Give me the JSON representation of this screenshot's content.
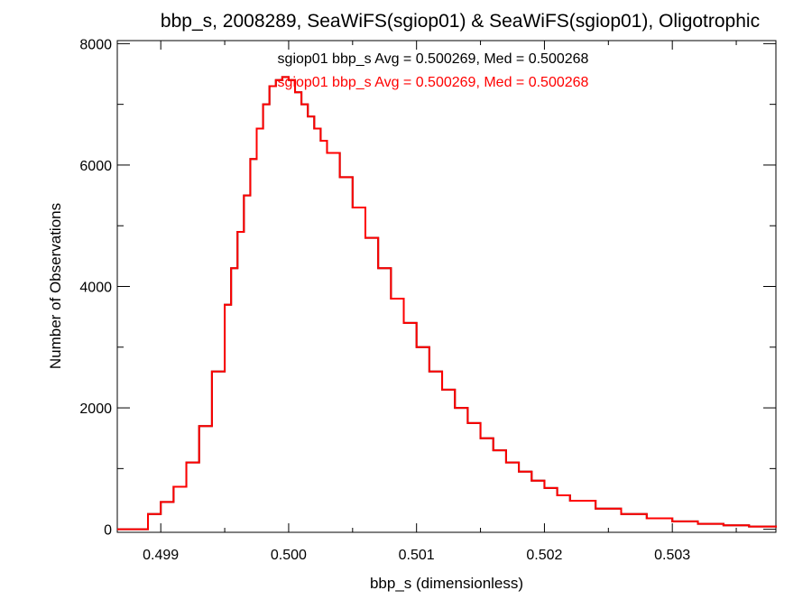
{
  "chart_data": {
    "type": "histogram",
    "title": "bbp_s, 2008289, SeaWiFS(sgiop01) & SeaWiFS(sgiop01), Oligotrophic",
    "xlabel": "bbp_s (dimensionless)",
    "ylabel": "Number of Observations",
    "xlim": [
      0.49866,
      0.50381
    ],
    "ylim": [
      -50,
      8050
    ],
    "x_ticks": [
      {
        "value": 0.499,
        "label": "0.499"
      },
      {
        "value": 0.5,
        "label": "0.500"
      },
      {
        "value": 0.501,
        "label": "0.501"
      },
      {
        "value": 0.502,
        "label": "0.502"
      },
      {
        "value": 0.503,
        "label": "0.503"
      }
    ],
    "y_ticks": [
      {
        "value": 0,
        "label": "0"
      },
      {
        "value": 2000,
        "label": "2000"
      },
      {
        "value": 4000,
        "label": "4000"
      },
      {
        "value": 6000,
        "label": "6000"
      },
      {
        "value": 8000,
        "label": "8000"
      }
    ],
    "grid": false,
    "annotations": [
      {
        "text": "sgiop01 bbp_s Avg = 0.500269, Med = 0.500268",
        "color": "#000000"
      },
      {
        "text": "sgiop01 bbp_s Avg = 0.500269, Med = 0.500268",
        "color": "#ff0000"
      }
    ],
    "series": [
      {
        "color": "#000000",
        "x": [
          0.49866,
          0.49885,
          0.4989,
          0.499,
          0.4991,
          0.4992,
          0.4993,
          0.4994,
          0.4995,
          0.49955,
          0.4996,
          0.49965,
          0.4997,
          0.49975,
          0.4998,
          0.49985,
          0.4999,
          0.49995,
          0.5,
          0.50005,
          0.5001,
          0.50015,
          0.5002,
          0.50025,
          0.5003,
          0.5004,
          0.5005,
          0.5006,
          0.5007,
          0.5008,
          0.5009,
          0.501,
          0.5011,
          0.5012,
          0.5013,
          0.5014,
          0.5015,
          0.5016,
          0.5017,
          0.5018,
          0.5019,
          0.502,
          0.5021,
          0.5022,
          0.5024,
          0.5026,
          0.5028,
          0.503,
          0.5032,
          0.5034,
          0.5036,
          0.50381
        ],
        "y": [
          0,
          0,
          250,
          450,
          700,
          1100,
          1700,
          2600,
          3700,
          4300,
          4900,
          5500,
          6100,
          6600,
          7000,
          7300,
          7400,
          7450,
          7400,
          7200,
          7000,
          6800,
          6600,
          6400,
          6200,
          5800,
          5300,
          4800,
          4300,
          3800,
          3400,
          3000,
          2600,
          2300,
          2000,
          1750,
          1500,
          1300,
          1100,
          950,
          800,
          680,
          560,
          470,
          340,
          250,
          180,
          130,
          90,
          65,
          45,
          30
        ]
      },
      {
        "color": "#ff0000",
        "x": [
          0.49866,
          0.49885,
          0.4989,
          0.499,
          0.4991,
          0.4992,
          0.4993,
          0.4994,
          0.4995,
          0.49955,
          0.4996,
          0.49965,
          0.4997,
          0.49975,
          0.4998,
          0.49985,
          0.4999,
          0.49995,
          0.5,
          0.50005,
          0.5001,
          0.50015,
          0.5002,
          0.50025,
          0.5003,
          0.5004,
          0.5005,
          0.5006,
          0.5007,
          0.5008,
          0.5009,
          0.501,
          0.5011,
          0.5012,
          0.5013,
          0.5014,
          0.5015,
          0.5016,
          0.5017,
          0.5018,
          0.5019,
          0.502,
          0.5021,
          0.5022,
          0.5024,
          0.5026,
          0.5028,
          0.503,
          0.5032,
          0.5034,
          0.5036,
          0.50381
        ],
        "y": [
          0,
          0,
          250,
          450,
          700,
          1100,
          1700,
          2600,
          3700,
          4300,
          4900,
          5500,
          6100,
          6600,
          7000,
          7300,
          7400,
          7450,
          7400,
          7200,
          7000,
          6800,
          6600,
          6400,
          6200,
          5800,
          5300,
          4800,
          4300,
          3800,
          3400,
          3000,
          2600,
          2300,
          2000,
          1750,
          1500,
          1300,
          1100,
          950,
          800,
          680,
          560,
          470,
          340,
          250,
          180,
          130,
          90,
          65,
          45,
          30
        ]
      }
    ]
  }
}
